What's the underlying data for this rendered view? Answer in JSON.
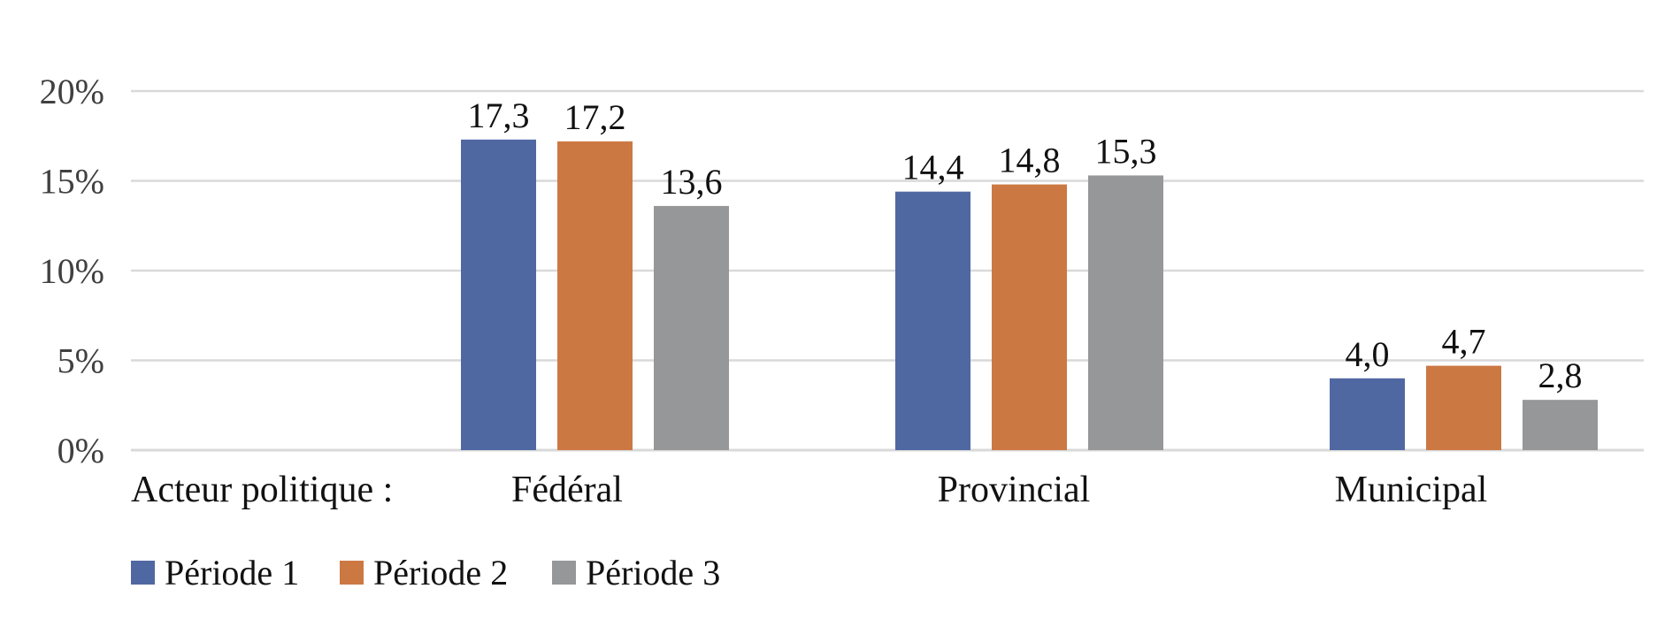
{
  "chart_data": {
    "type": "bar",
    "title": "",
    "xlabel": "",
    "ylabel": "",
    "axis_prefix_label": "Acteur politique :",
    "categories": [
      "Fédéral",
      "Provincial",
      "Municipal"
    ],
    "series": [
      {
        "name": "Période 1",
        "values": [
          17.3,
          14.4,
          4.0
        ],
        "labels": [
          "17,3",
          "14,4",
          "4,0"
        ],
        "color": "#5068A2"
      },
      {
        "name": "Période 2",
        "values": [
          17.2,
          14.8,
          4.7
        ],
        "labels": [
          "17,2",
          "14,8",
          "4,7"
        ],
        "color": "#CC7843"
      },
      {
        "name": "Période 3",
        "values": [
          13.6,
          15.3,
          2.8
        ],
        "labels": [
          "13,6",
          "15,3",
          "2,8"
        ],
        "color": "#969798"
      }
    ],
    "ylim": [
      0,
      20
    ],
    "yticks": [
      0,
      5,
      10,
      15,
      20
    ],
    "ytick_labels": [
      "0%",
      "5%",
      "10%",
      "15%",
      "20%"
    ],
    "grid": true,
    "gridline_color": "#D9D9D9",
    "legend_position": "bottom-left"
  }
}
